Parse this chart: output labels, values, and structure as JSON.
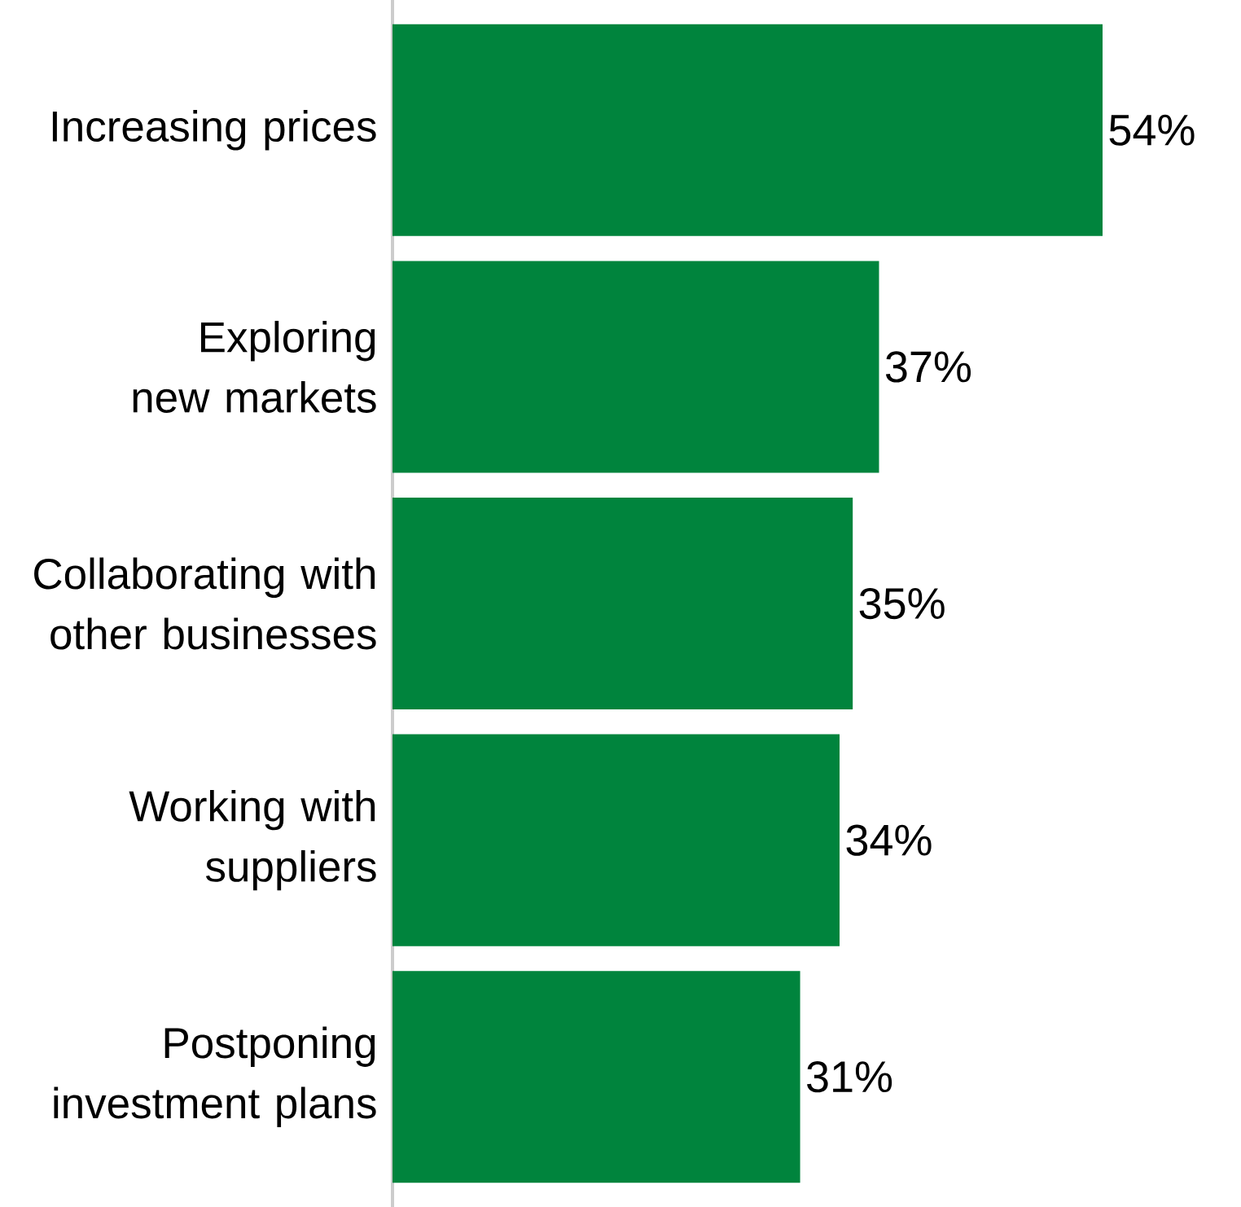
{
  "chart_data": {
    "type": "bar",
    "orientation": "horizontal",
    "categories": [
      "Increasing prices",
      "Exploring new markets",
      "Collaborating with other businesses",
      "Working with suppliers",
      "Postponing investment plans"
    ],
    "values": [
      54,
      37,
      35,
      34,
      31
    ],
    "value_labels": [
      "54%",
      "37%",
      "35%",
      "34%",
      "31%"
    ],
    "color": "#00843d",
    "tick_labels": "y",
    "grid": false
  }
}
